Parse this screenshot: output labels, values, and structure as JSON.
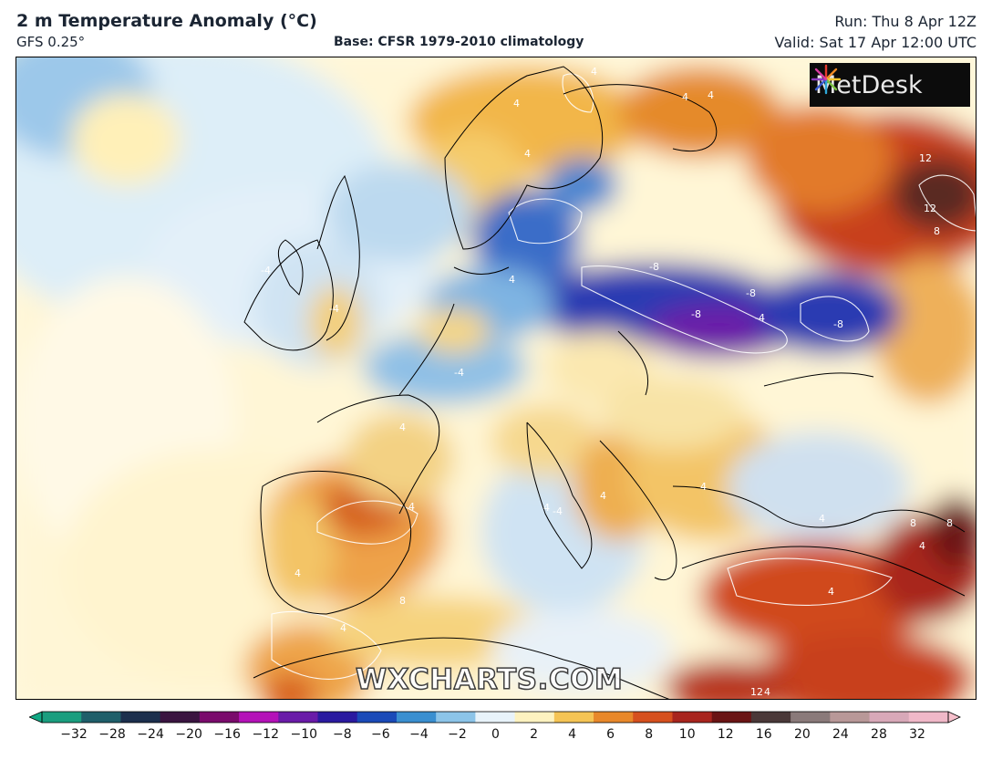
{
  "header": {
    "title": "2 m Temperature Anomaly (°C)",
    "model": "GFS 0.25°",
    "base": "Base: CFSR 1979-2010 climatology",
    "run": "Run: Thu 8 Apr 12Z",
    "valid": "Valid: Sat 17 Apr 12:00 UTC"
  },
  "logo": {
    "text": "MetDesk",
    "icon": "starburst-logo-icon"
  },
  "watermark": "WXCHARTS.COM",
  "contour_labels": [
    {
      "text": "4"
    },
    {
      "text": "4"
    },
    {
      "text": "4"
    },
    {
      "text": "4"
    },
    {
      "text": "4"
    },
    {
      "text": "12"
    },
    {
      "text": "12"
    },
    {
      "text": "8"
    },
    {
      "text": "-4"
    },
    {
      "text": "-4"
    },
    {
      "text": "4"
    },
    {
      "text": "-8"
    },
    {
      "text": "-8"
    },
    {
      "text": "-8"
    },
    {
      "text": "-8"
    },
    {
      "text": "-4"
    },
    {
      "text": "-4"
    },
    {
      "text": "4"
    },
    {
      "text": "4"
    },
    {
      "text": "4"
    },
    {
      "text": "4"
    },
    {
      "text": "4"
    },
    {
      "text": "8"
    },
    {
      "text": "8"
    },
    {
      "text": "4"
    },
    {
      "text": "4"
    },
    {
      "text": "4"
    },
    {
      "text": "8"
    },
    {
      "text": "12"
    },
    {
      "text": "4"
    },
    {
      "text": "-4"
    },
    {
      "text": "4"
    },
    {
      "text": "4"
    }
  ],
  "colorbar": {
    "ticks": [
      "−32",
      "−28",
      "−24",
      "−20",
      "−16",
      "−12",
      "−10",
      "−8",
      "−6",
      "−4",
      "−2",
      "0",
      "2",
      "4",
      "6",
      "8",
      "10",
      "12",
      "16",
      "20",
      "24",
      "28",
      "32"
    ],
    "colors": [
      "#1a9e7f",
      "#1f5f6a",
      "#1c2f4d",
      "#3a1440",
      "#7a0b6c",
      "#b412b8",
      "#6a1ba8",
      "#2a1aa0",
      "#1a4ab8",
      "#3a8fd0",
      "#8cc4e8",
      "#e8f3fa",
      "#fdf2c0",
      "#f5c455",
      "#e8882a",
      "#d6501e",
      "#a8251e",
      "#6a1414",
      "#4a3838",
      "#8a7a7a",
      "#b89898",
      "#d8a8b8",
      "#f0b8c8"
    ]
  }
}
